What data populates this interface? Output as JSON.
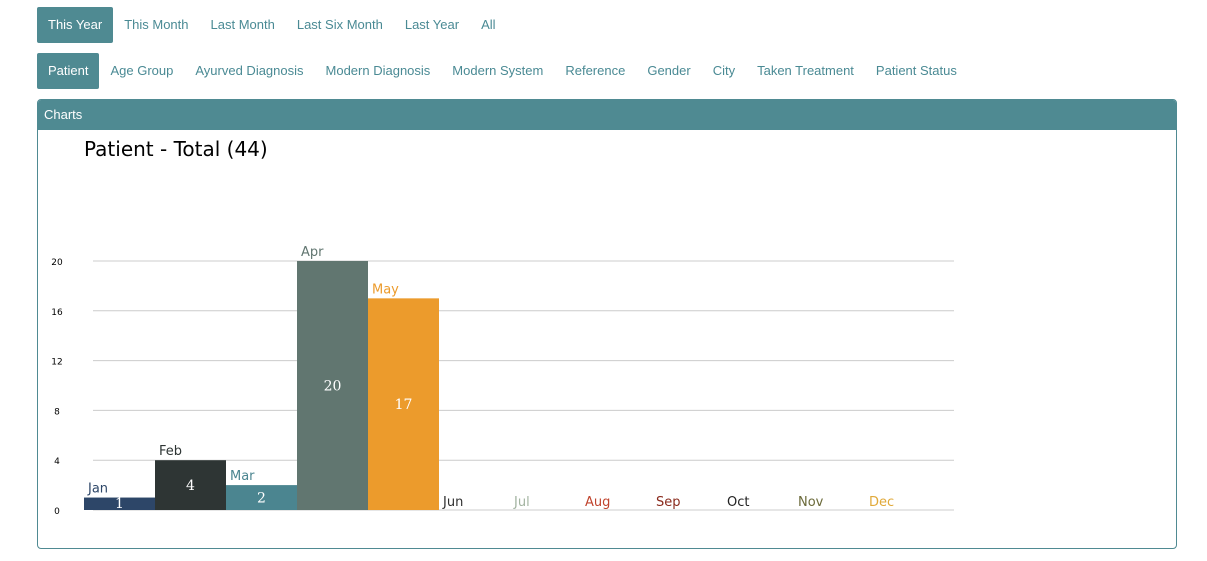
{
  "filters": {
    "period_tabs": [
      {
        "label": "This Year",
        "active": true
      },
      {
        "label": "This Month",
        "active": false
      },
      {
        "label": "Last Month",
        "active": false
      },
      {
        "label": "Last Six Month",
        "active": false
      },
      {
        "label": "Last Year",
        "active": false
      },
      {
        "label": "All",
        "active": false
      }
    ],
    "category_tabs": [
      {
        "label": "Patient",
        "active": true
      },
      {
        "label": "Age Group",
        "active": false
      },
      {
        "label": "Ayurved Diagnosis",
        "active": false
      },
      {
        "label": "Modern Diagnosis",
        "active": false
      },
      {
        "label": "Modern System",
        "active": false
      },
      {
        "label": "Reference",
        "active": false
      },
      {
        "label": "Gender",
        "active": false
      },
      {
        "label": "City",
        "active": false
      },
      {
        "label": "Taken Treatment",
        "active": false
      },
      {
        "label": "Patient Status",
        "active": false
      }
    ]
  },
  "panel": {
    "title": "Charts"
  },
  "colors": {
    "accent": "#4f8a92"
  },
  "chart_data": {
    "type": "bar",
    "title": "Patient - Total (44)",
    "categories": [
      "Jan",
      "Feb",
      "Mar",
      "Apr",
      "May",
      "Jun",
      "Jul",
      "Aug",
      "Sep",
      "Oct",
      "Nov",
      "Dec"
    ],
    "values": [
      1,
      4,
      2,
      20,
      17,
      0,
      0,
      0,
      0,
      0,
      0,
      0
    ],
    "colors": [
      "#2d4668",
      "#2e3534",
      "#4b8590",
      "#617670",
      "#ec9b2c",
      "#2f2f2f",
      "#a2b3a0",
      "#c0442e",
      "#8a2a1c",
      "#222222",
      "#6b6a3a",
      "#e0a93a"
    ],
    "yticks": [
      0,
      4,
      8,
      12,
      16,
      20
    ],
    "ylim": [
      0,
      20
    ],
    "grid": true,
    "legend": "none"
  }
}
